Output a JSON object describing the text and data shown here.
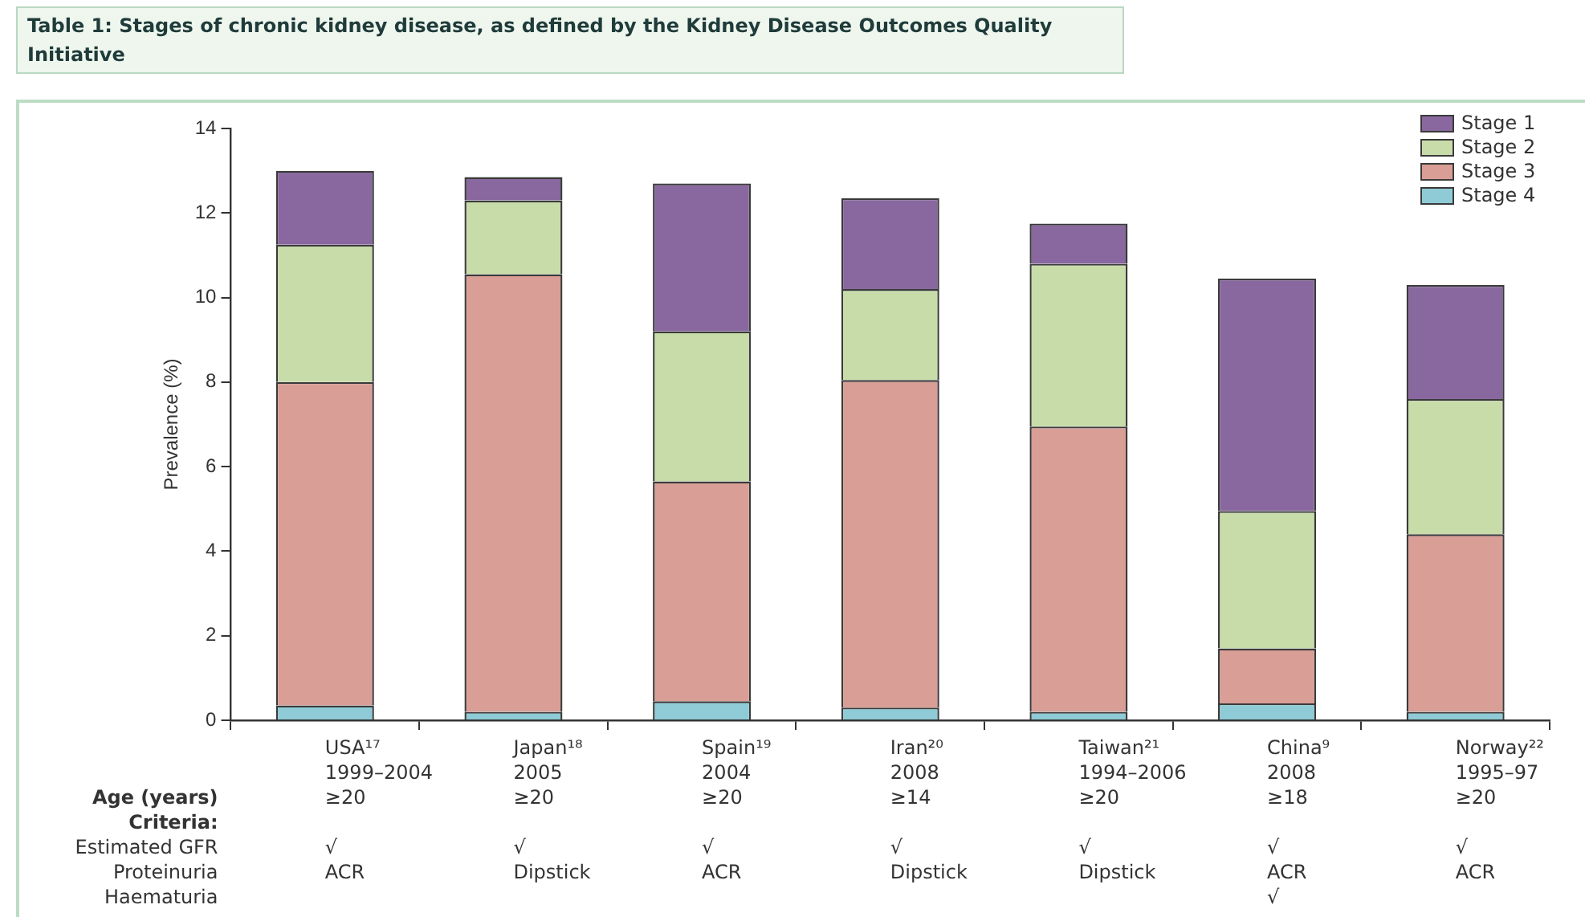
{
  "chart_data": {
    "type": "bar",
    "stacked": true,
    "title": "Table 1: Stages of chronic kidney disease, as defined by the Kidney Disease Outcomes Quality Initiative",
    "ylabel": "Prevalence (%)",
    "categories": [
      "USA¹⁷\n1999–2004\n≥20\n\n√\nACR\n",
      "Japan¹⁸\n2005\n≥20\n\n√\nDipstick\n",
      "Spain¹⁹\n2004\n≥20\n\n√\nACR\n",
      "Iran²⁰\n2008\n≥14\n\n√\nDipstick\n",
      "Taiwan²¹\n1994–2006\n≥20\n\n√\nDipstick\n",
      "China⁹\n2008\n≥18\n\n√\nACR\n√",
      "Norway²²\n1995–97\n≥20\n\n√\nACR\n"
    ],
    "series": [
      {
        "name": "Stage 4",
        "color": "#8ecbd6",
        "values": [
          0.35,
          0.2,
          0.45,
          0.3,
          0.2,
          0.4,
          0.2
        ]
      },
      {
        "name": "Stage 3",
        "color": "#d99e96",
        "values": [
          7.65,
          10.35,
          5.2,
          7.75,
          6.75,
          1.3,
          4.2
        ]
      },
      {
        "name": "Stage 2",
        "color": "#c8dcaa",
        "values": [
          3.25,
          1.75,
          3.55,
          2.15,
          3.85,
          3.25,
          3.2
        ]
      },
      {
        "name": "Stage 1",
        "color": "#88689e",
        "values": [
          1.75,
          0.55,
          3.5,
          2.15,
          0.95,
          5.5,
          2.7
        ]
      }
    ],
    "ylim": [
      0,
      14
    ],
    "yticks": [
      0,
      2,
      4,
      6,
      8,
      10,
      12,
      14
    ],
    "grid": false,
    "legend": "top right",
    "annotations": [
      "Age (years)",
      "Criteria:",
      "Estimated GFR",
      "Proteinuria",
      "Haematuria"
    ]
  }
}
